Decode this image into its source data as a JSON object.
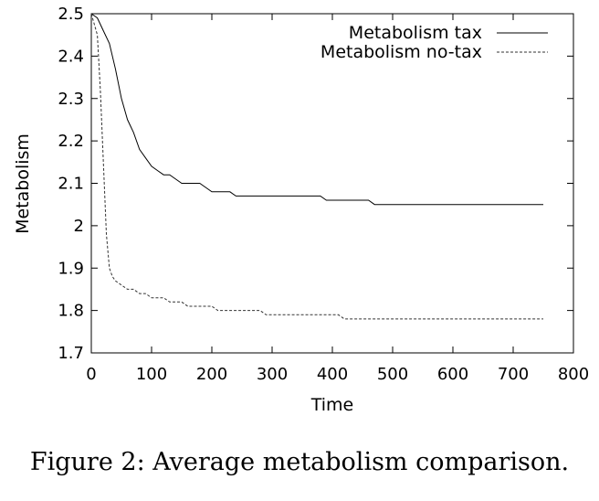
{
  "chart_data": {
    "type": "line",
    "xlabel": "Time",
    "ylabel": "Metabolism",
    "xlim": [
      0,
      800
    ],
    "ylim": [
      1.7,
      2.5
    ],
    "xticks": [
      "0",
      "100",
      "200",
      "300",
      "400",
      "500",
      "600",
      "700",
      "800"
    ],
    "yticks": [
      "1.7",
      "1.8",
      "1.9",
      "2",
      "2.1",
      "2.2",
      "2.3",
      "2.4",
      "2.5"
    ],
    "legend_position": "top-right",
    "grid": false,
    "series": [
      {
        "name": "Metabolism tax",
        "style": "solid",
        "x": [
          0,
          10,
          20,
          30,
          40,
          50,
          60,
          70,
          80,
          90,
          100,
          110,
          120,
          130,
          140,
          150,
          160,
          170,
          180,
          190,
          200,
          210,
          220,
          230,
          240,
          250,
          260,
          270,
          280,
          290,
          300,
          320,
          340,
          360,
          380,
          390,
          400,
          420,
          440,
          460,
          470,
          480,
          500,
          520,
          540,
          560,
          580,
          600,
          620,
          640,
          660,
          680,
          700,
          720,
          740,
          750
        ],
        "y": [
          2.5,
          2.49,
          2.46,
          2.43,
          2.37,
          2.3,
          2.25,
          2.22,
          2.18,
          2.16,
          2.14,
          2.13,
          2.12,
          2.12,
          2.11,
          2.1,
          2.1,
          2.1,
          2.1,
          2.09,
          2.08,
          2.08,
          2.08,
          2.08,
          2.07,
          2.07,
          2.07,
          2.07,
          2.07,
          2.07,
          2.07,
          2.07,
          2.07,
          2.07,
          2.07,
          2.06,
          2.06,
          2.06,
          2.06,
          2.06,
          2.05,
          2.05,
          2.05,
          2.05,
          2.05,
          2.05,
          2.05,
          2.05,
          2.05,
          2.05,
          2.05,
          2.05,
          2.05,
          2.05,
          2.05,
          2.05
        ]
      },
      {
        "name": "Metabolism no-tax",
        "style": "dashed",
        "x": [
          0,
          10,
          15,
          20,
          25,
          30,
          35,
          40,
          50,
          60,
          70,
          80,
          90,
          100,
          110,
          120,
          130,
          140,
          150,
          160,
          170,
          180,
          190,
          200,
          210,
          220,
          240,
          260,
          280,
          290,
          300,
          320,
          340,
          360,
          380,
          400,
          410,
          420,
          440,
          460,
          480,
          500,
          550,
          600,
          650,
          700,
          750
        ],
        "y": [
          2.5,
          2.45,
          2.32,
          2.15,
          1.98,
          1.9,
          1.88,
          1.87,
          1.86,
          1.85,
          1.85,
          1.84,
          1.84,
          1.83,
          1.83,
          1.83,
          1.82,
          1.82,
          1.82,
          1.81,
          1.81,
          1.81,
          1.81,
          1.81,
          1.8,
          1.8,
          1.8,
          1.8,
          1.8,
          1.79,
          1.79,
          1.79,
          1.79,
          1.79,
          1.79,
          1.79,
          1.79,
          1.78,
          1.78,
          1.78,
          1.78,
          1.78,
          1.78,
          1.78,
          1.78,
          1.78,
          1.78
        ]
      }
    ]
  },
  "caption": "Figure 2:  Average metabolism comparison."
}
